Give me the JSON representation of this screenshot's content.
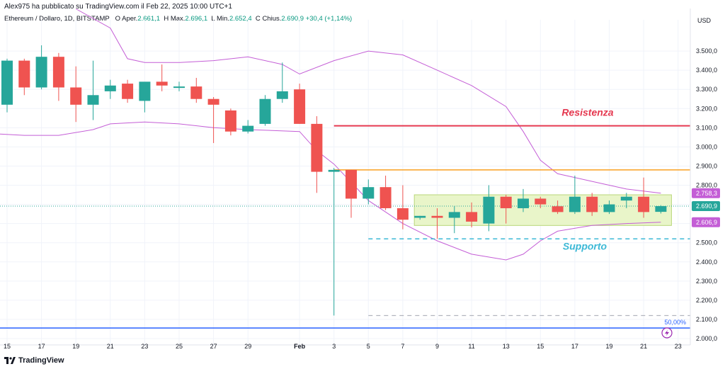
{
  "header": {
    "author_line": "Alex975 ha pubblicato su TradingView.com il Feb 22, 2025 10:00 UTC+1",
    "symbol": "Ethereum / Dollaro, 1D, BITSTAMP",
    "o_label": "O",
    "o_prefix": "Aper.",
    "o_value": "2.661,1",
    "h_label": "H",
    "h_prefix": "Max.",
    "h_value": "2.696,1",
    "l_label": "L",
    "l_prefix": "Min.",
    "l_value": "2.652,4",
    "c_label": "C",
    "c_prefix": "Chius.",
    "c_value": "2.690,9",
    "change": "+30,4 (+1,14%)"
  },
  "footer": {
    "brand": "TradingView"
  },
  "colors": {
    "up": "#26a69a",
    "down": "#ef5350",
    "band": "#c45ed6",
    "resistance": "#e53950",
    "support": "#3bb8d6",
    "orange": "#f9a021",
    "fib": "#2962ff",
    "zone": "#e9f5c9"
  },
  "chart_data": {
    "type": "candlestick",
    "currency": "USD",
    "ylim": [
      2000,
      3600
    ],
    "y_ticks": [
      "2.000,0",
      "2.100,0",
      "2.200,0",
      "2.300,0",
      "2.400,0",
      "2.500,0",
      "2.600,0",
      "2.700,0",
      "2.800,0",
      "2.900,0",
      "3.000,0",
      "3.100,0",
      "3.200,0",
      "3.300,0",
      "3.400,0",
      "3.500,0"
    ],
    "x_ticks": [
      {
        "label": "15",
        "date": "2025-01-15"
      },
      {
        "label": "17",
        "date": "2025-01-17"
      },
      {
        "label": "19",
        "date": "2025-01-19"
      },
      {
        "label": "21",
        "date": "2025-01-21"
      },
      {
        "label": "23",
        "date": "2025-01-23"
      },
      {
        "label": "25",
        "date": "2025-01-25"
      },
      {
        "label": "27",
        "date": "2025-01-27"
      },
      {
        "label": "29",
        "date": "2025-01-29"
      },
      {
        "label": "Feb",
        "date": "2025-02-01"
      },
      {
        "label": "3",
        "date": "2025-02-03"
      },
      {
        "label": "5",
        "date": "2025-02-05"
      },
      {
        "label": "7",
        "date": "2025-02-07"
      },
      {
        "label": "9",
        "date": "2025-02-09"
      },
      {
        "label": "11",
        "date": "2025-02-11"
      },
      {
        "label": "13",
        "date": "2025-02-13"
      },
      {
        "label": "15",
        "date": "2025-02-15"
      },
      {
        "label": "17",
        "date": "2025-02-17"
      },
      {
        "label": "19",
        "date": "2025-02-19"
      },
      {
        "label": "21",
        "date": "2025-02-21"
      },
      {
        "label": "23",
        "date": "2025-02-23"
      }
    ],
    "candles": [
      {
        "date": "2025-01-15",
        "o": 3220,
        "h": 3460,
        "l": 3180,
        "c": 3450
      },
      {
        "date": "2025-01-16",
        "o": 3450,
        "h": 3460,
        "l": 3270,
        "c": 3310
      },
      {
        "date": "2025-01-17",
        "o": 3310,
        "h": 3530,
        "l": 3300,
        "c": 3470
      },
      {
        "date": "2025-01-18",
        "o": 3470,
        "h": 3490,
        "l": 3240,
        "c": 3310
      },
      {
        "date": "2025-01-19",
        "o": 3310,
        "h": 3420,
        "l": 3130,
        "c": 3220
      },
      {
        "date": "2025-01-20",
        "o": 3220,
        "h": 3450,
        "l": 3140,
        "c": 3270
      },
      {
        "date": "2025-01-21",
        "o": 3290,
        "h": 3350,
        "l": 3250,
        "c": 3320
      },
      {
        "date": "2025-01-22",
        "o": 3330,
        "h": 3350,
        "l": 3230,
        "c": 3250
      },
      {
        "date": "2025-01-23",
        "o": 3240,
        "h": 3330,
        "l": 3180,
        "c": 3340
      },
      {
        "date": "2025-01-24",
        "o": 3340,
        "h": 3430,
        "l": 3290,
        "c": 3320
      },
      {
        "date": "2025-01-25",
        "o": 3310,
        "h": 3340,
        "l": 3290,
        "c": 3315
      },
      {
        "date": "2025-01-26",
        "o": 3315,
        "h": 3360,
        "l": 3230,
        "c": 3250
      },
      {
        "date": "2025-01-27",
        "o": 3250,
        "h": 3260,
        "l": 3020,
        "c": 3220
      },
      {
        "date": "2025-01-28",
        "o": 3190,
        "h": 3200,
        "l": 3060,
        "c": 3080
      },
      {
        "date": "2025-01-29",
        "o": 3080,
        "h": 3140,
        "l": 3070,
        "c": 3110
      },
      {
        "date": "2025-01-30",
        "o": 3120,
        "h": 3270,
        "l": 3110,
        "c": 3250
      },
      {
        "date": "2025-01-31",
        "o": 3250,
        "h": 3440,
        "l": 3230,
        "c": 3290
      },
      {
        "date": "2025-02-01",
        "o": 3300,
        "h": 3330,
        "l": 3120,
        "c": 3120
      },
      {
        "date": "2025-02-02",
        "o": 3120,
        "h": 3160,
        "l": 2760,
        "c": 2870
      },
      {
        "date": "2025-02-03",
        "o": 2870,
        "h": 2890,
        "l": 2120,
        "c": 2880
      },
      {
        "date": "2025-02-04",
        "o": 2880,
        "h": 2880,
        "l": 2630,
        "c": 2730
      },
      {
        "date": "2025-02-05",
        "o": 2730,
        "h": 2830,
        "l": 2700,
        "c": 2790
      },
      {
        "date": "2025-02-06",
        "o": 2790,
        "h": 2850,
        "l": 2670,
        "c": 2680
      },
      {
        "date": "2025-02-07",
        "o": 2680,
        "h": 2800,
        "l": 2570,
        "c": 2620
      },
      {
        "date": "2025-02-08",
        "o": 2630,
        "h": 2640,
        "l": 2620,
        "c": 2640
      },
      {
        "date": "2025-02-09",
        "o": 2640,
        "h": 2680,
        "l": 2520,
        "c": 2630
      },
      {
        "date": "2025-02-10",
        "o": 2630,
        "h": 2690,
        "l": 2550,
        "c": 2660
      },
      {
        "date": "2025-02-11",
        "o": 2660,
        "h": 2710,
        "l": 2580,
        "c": 2610
      },
      {
        "date": "2025-02-12",
        "o": 2600,
        "h": 2800,
        "l": 2560,
        "c": 2740
      },
      {
        "date": "2025-02-13",
        "o": 2740,
        "h": 2750,
        "l": 2600,
        "c": 2680
      },
      {
        "date": "2025-02-14",
        "o": 2680,
        "h": 2780,
        "l": 2660,
        "c": 2730
      },
      {
        "date": "2025-02-15",
        "o": 2730,
        "h": 2740,
        "l": 2680,
        "c": 2700
      },
      {
        "date": "2025-02-16",
        "o": 2690,
        "h": 2720,
        "l": 2650,
        "c": 2660
      },
      {
        "date": "2025-02-17",
        "o": 2660,
        "h": 2850,
        "l": 2650,
        "c": 2740
      },
      {
        "date": "2025-02-18",
        "o": 2740,
        "h": 2760,
        "l": 2640,
        "c": 2660
      },
      {
        "date": "2025-02-19",
        "o": 2660,
        "h": 2720,
        "l": 2650,
        "c": 2700
      },
      {
        "date": "2025-02-20",
        "o": 2720,
        "h": 2760,
        "l": 2680,
        "c": 2740
      },
      {
        "date": "2025-02-21",
        "o": 2740,
        "h": 2840,
        "l": 2630,
        "c": 2660
      },
      {
        "date": "2025-02-22",
        "o": 2661.1,
        "h": 2696.1,
        "l": 2652.4,
        "c": 2690.9
      }
    ],
    "bollinger_upper": [
      [
        "2025-01-19",
        3720
      ],
      [
        "2025-01-21",
        3620
      ],
      [
        "2025-01-22",
        3460
      ],
      [
        "2025-01-23",
        3440
      ],
      [
        "2025-01-25",
        3440
      ],
      [
        "2025-01-27",
        3450
      ],
      [
        "2025-01-29",
        3470
      ],
      [
        "2025-01-31",
        3430
      ],
      [
        "2025-02-01",
        3380
      ],
      [
        "2025-02-03",
        3450
      ],
      [
        "2025-02-05",
        3500
      ],
      [
        "2025-02-07",
        3480
      ],
      [
        "2025-02-09",
        3400
      ],
      [
        "2025-02-11",
        3320
      ],
      [
        "2025-02-13",
        3210
      ],
      [
        "2025-02-14",
        3080
      ],
      [
        "2025-02-15",
        2930
      ],
      [
        "2025-02-16",
        2860
      ],
      [
        "2025-02-18",
        2820
      ],
      [
        "2025-02-20",
        2780
      ],
      [
        "2025-02-22",
        2758.3
      ]
    ],
    "bollinger_lower": [
      [
        "2025-01-14",
        3070
      ],
      [
        "2025-01-16",
        3060
      ],
      [
        "2025-01-18",
        3060
      ],
      [
        "2025-01-20",
        3090
      ],
      [
        "2025-01-21",
        3120
      ],
      [
        "2025-01-23",
        3130
      ],
      [
        "2025-01-25",
        3120
      ],
      [
        "2025-01-27",
        3100
      ],
      [
        "2025-01-29",
        3090
      ],
      [
        "2025-02-01",
        3080
      ],
      [
        "2025-02-02",
        2980
      ],
      [
        "2025-02-03",
        2910
      ],
      [
        "2025-02-05",
        2720
      ],
      [
        "2025-02-07",
        2600
      ],
      [
        "2025-02-09",
        2510
      ],
      [
        "2025-02-11",
        2440
      ],
      [
        "2025-02-13",
        2410
      ],
      [
        "2025-02-14",
        2440
      ],
      [
        "2025-02-15",
        2510
      ],
      [
        "2025-02-16",
        2560
      ],
      [
        "2025-02-18",
        2590
      ],
      [
        "2025-02-20",
        2600
      ],
      [
        "2025-02-22",
        2606.9
      ]
    ],
    "resistance": {
      "label": "Resistenza",
      "price": 3110,
      "from": "2025-02-03"
    },
    "orange_line": {
      "price": 2880,
      "from": "2025-02-03"
    },
    "support": {
      "label": "Supporto",
      "price": 2520,
      "from": "2025-02-05"
    },
    "gray_dashed": {
      "price": 2120,
      "from": "2025-02-05"
    },
    "fib_line": {
      "price": 2055,
      "label": "50,00%"
    },
    "range_box": {
      "from": "2025-02-08",
      "to": "2025-02-22",
      "top": 2750,
      "bottom": 2590
    },
    "price_labels": [
      {
        "text": "2.758,3",
        "price": 2758.3,
        "series": "band"
      },
      {
        "text": "2.690,9",
        "price": 2690.9,
        "series": "last"
      },
      {
        "text": "2.606,9",
        "price": 2606.9,
        "series": "band"
      }
    ]
  }
}
